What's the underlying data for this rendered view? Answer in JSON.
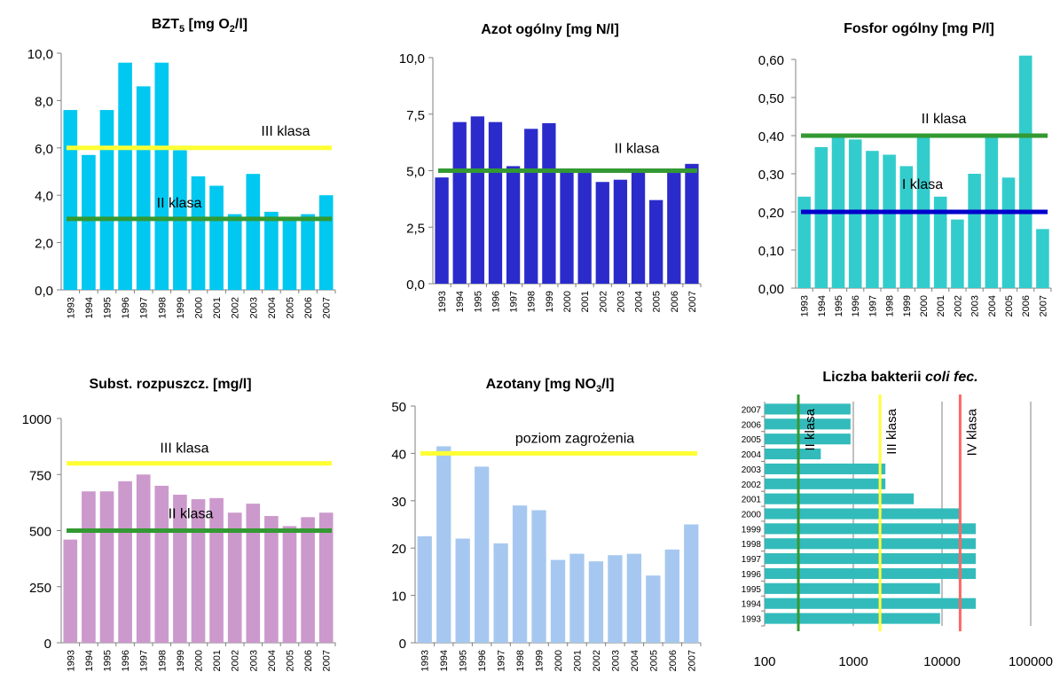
{
  "chart_data": [
    {
      "id": "bzt5",
      "type": "bar",
      "title": "BZT",
      "title_sub": "5",
      "title_rest": " [mg O",
      "title_sub2": "2",
      "title_end": "/l]",
      "categories": [
        "1993",
        "1994",
        "1995",
        "1996",
        "1997",
        "1998",
        "1999",
        "2000",
        "2001",
        "2002",
        "2003",
        "2004",
        "2005",
        "2006",
        "2007"
      ],
      "values": [
        7.6,
        5.7,
        7.6,
        9.6,
        8.6,
        9.6,
        5.9,
        4.8,
        4.4,
        3.2,
        4.9,
        3.3,
        3.0,
        3.2,
        4.0
      ],
      "ylim": [
        0,
        10
      ],
      "yticks": [
        "0,0",
        "2,0",
        "4,0",
        "6,0",
        "8,0",
        "10,0"
      ],
      "bar_color": "#00C8F0",
      "lines": [
        {
          "value": 6.0,
          "label": "III klasa",
          "color": "#FFFF33"
        },
        {
          "value": 3.0,
          "label": "II klasa",
          "color": "#339933"
        }
      ]
    },
    {
      "id": "azot",
      "type": "bar",
      "title": "Azot ogólny [mg N/l]",
      "categories": [
        "1993",
        "1994",
        "1995",
        "1996",
        "1997",
        "1998",
        "1999",
        "2000",
        "2001",
        "2002",
        "2003",
        "2004",
        "2005",
        "2006",
        "2007"
      ],
      "values": [
        4.7,
        7.15,
        7.4,
        7.15,
        5.2,
        6.85,
        7.1,
        5.1,
        4.9,
        4.5,
        4.6,
        5.0,
        3.7,
        4.9,
        5.3
      ],
      "ylim": [
        0,
        10
      ],
      "yticks": [
        "0,0",
        "2,5",
        "5,0",
        "7,5",
        "10,0"
      ],
      "bar_color": "#2B2BCC",
      "lines": [
        {
          "value": 5.0,
          "label": "II klasa",
          "color": "#339933"
        }
      ]
    },
    {
      "id": "fosfor",
      "type": "bar",
      "title": "Fosfor ogólny [mg P/l]",
      "categories": [
        "1993",
        "1994",
        "1995",
        "1996",
        "1997",
        "1998",
        "1999",
        "2000",
        "2001",
        "2002",
        "2003",
        "2004",
        "2005",
        "2006",
        "2007"
      ],
      "values": [
        0.24,
        0.37,
        0.4,
        0.39,
        0.36,
        0.35,
        0.32,
        0.4,
        0.24,
        0.18,
        0.3,
        0.4,
        0.29,
        0.61,
        0.155
      ],
      "ylim": [
        0,
        0.6
      ],
      "yticks": [
        "0,00",
        "0,10",
        "0,20",
        "0,30",
        "0,40",
        "0,50",
        "0,60"
      ],
      "bar_color": "#33CCCC",
      "lines": [
        {
          "value": 0.4,
          "label": "II klasa",
          "color": "#339933"
        },
        {
          "value": 0.2,
          "label": "I klasa",
          "color": "#0000CC"
        }
      ]
    },
    {
      "id": "subst",
      "type": "bar",
      "title": "Subst. rozpuszcz. [mg/l]",
      "categories": [
        "1993",
        "1994",
        "1995",
        "1996",
        "1997",
        "1998",
        "1999",
        "2000",
        "2001",
        "2002",
        "2003",
        "2004",
        "2005",
        "2006",
        "2007"
      ],
      "values": [
        460,
        675,
        675,
        720,
        750,
        700,
        660,
        640,
        645,
        580,
        620,
        565,
        520,
        560,
        580
      ],
      "ylim": [
        0,
        1000
      ],
      "yticks": [
        "0",
        "250",
        "500",
        "750",
        "1000"
      ],
      "bar_color": "#CC99CC",
      "lines": [
        {
          "value": 800,
          "label": "III klasa",
          "color": "#FFFF33"
        },
        {
          "value": 500,
          "label": "II klasa",
          "color": "#339933"
        }
      ]
    },
    {
      "id": "azotany",
      "type": "bar",
      "title": "Azotany [mg NO",
      "title_sub": "3",
      "title_end": "/l]",
      "categories": [
        "1993",
        "1994",
        "1995",
        "1996",
        "1997",
        "1998",
        "1999",
        "2000",
        "2001",
        "2002",
        "2003",
        "2004",
        "2005",
        "2006",
        "2007"
      ],
      "values": [
        22.5,
        41.5,
        22.0,
        37.2,
        21.0,
        29.0,
        28.0,
        17.5,
        18.8,
        17.2,
        18.5,
        18.8,
        14.2,
        19.7,
        25.0
      ],
      "ylim": [
        0,
        50
      ],
      "yticks": [
        "0",
        "10",
        "20",
        "30",
        "40",
        "50"
      ],
      "bar_color": "#A6C8F0",
      "lines": [
        {
          "value": 40,
          "label": "poziom zagrożenia",
          "color": "#FFFF33"
        }
      ]
    },
    {
      "id": "coli",
      "type": "bar",
      "orientation": "horizontal",
      "scale": "log",
      "title": "Liczba bakterii ",
      "title_italic": "coli fec.",
      "categories": [
        "1993",
        "1994",
        "1995",
        "1996",
        "1997",
        "1998",
        "1999",
        "2000",
        "2001",
        "2002",
        "2003",
        "2004",
        "2005",
        "2006",
        "2007"
      ],
      "values": [
        9500,
        24000,
        9500,
        24000,
        24000,
        24000,
        24000,
        16000,
        4800,
        2300,
        2300,
        430,
        930,
        930,
        930
      ],
      "xlim": [
        100,
        100000
      ],
      "xticks": [
        "100",
        "1000",
        "10000",
        "100000"
      ],
      "bar_color": "#33BBBB",
      "lines": [
        {
          "value": 240,
          "label": "II klasa",
          "color": "#339933"
        },
        {
          "value": 2000,
          "label": "III klasa",
          "color": "#FFFF33"
        },
        {
          "value": 16000,
          "label": "IV klasa",
          "color": "#FF6666"
        }
      ]
    }
  ]
}
